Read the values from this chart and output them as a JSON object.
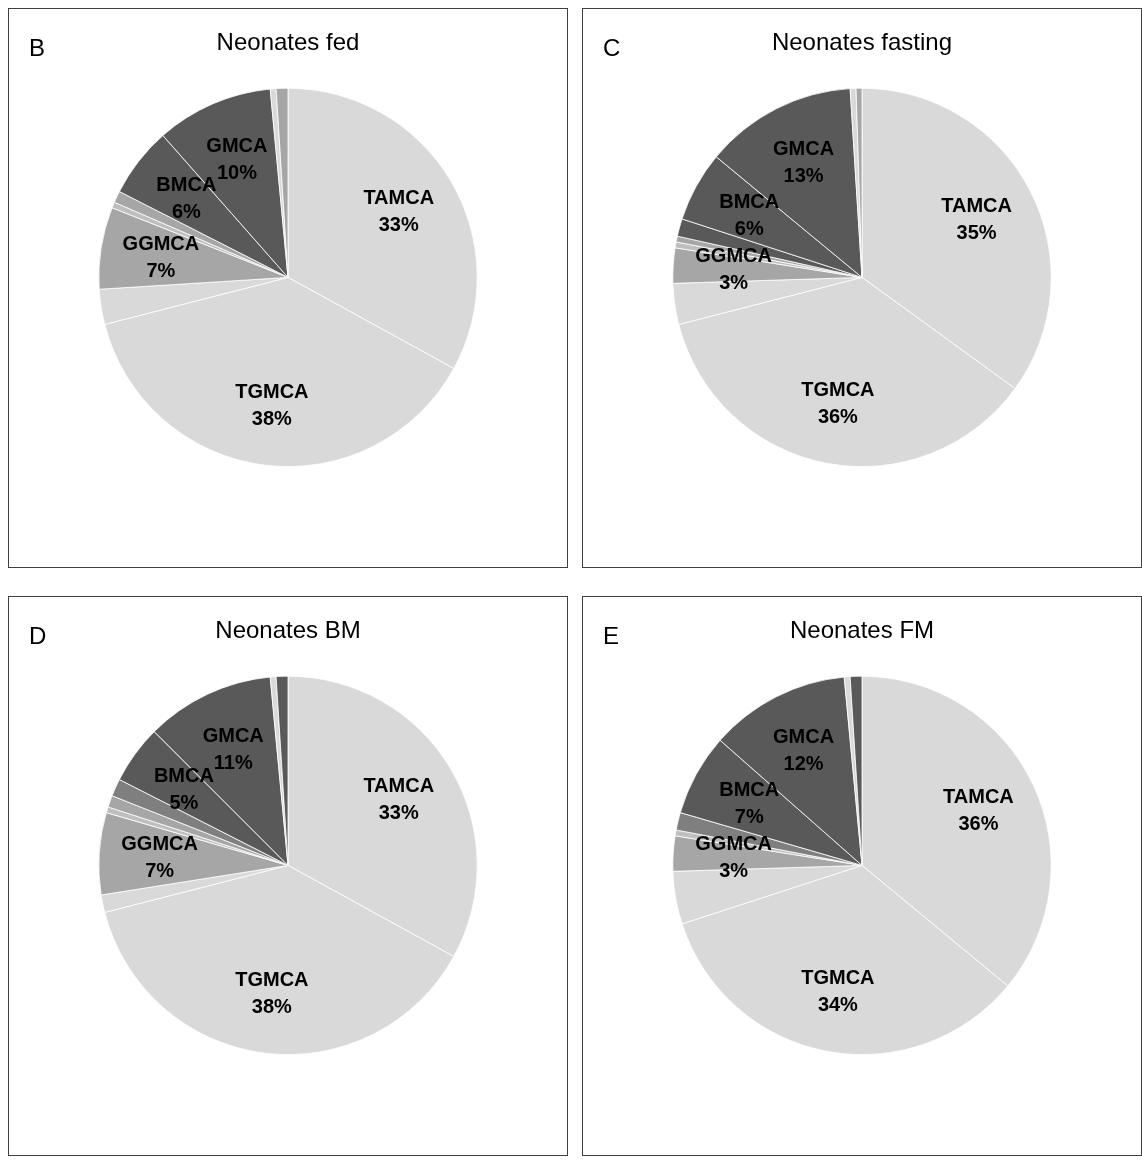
{
  "chart_data": [
    {
      "type": "pie",
      "title": "Neonates fed",
      "annotations": [
        "B"
      ],
      "legend": false,
      "categories": [
        "TAMCA",
        "TGMCA",
        null,
        "GGMCA",
        null,
        null,
        "BMCA",
        "GMCA",
        null,
        null
      ],
      "values": [
        33,
        38,
        3,
        7,
        0.5,
        1,
        6,
        10,
        0.5,
        1
      ],
      "value_labels": [
        "33%",
        "38%",
        null,
        "7%",
        null,
        null,
        "6%",
        "10%",
        null,
        null
      ],
      "colors": [
        "#d9d9d9",
        "#d9d9d9",
        "#d9d9d9",
        "#a6a6a6",
        "#bfbfbf",
        "#a6a6a6",
        "#595959",
        "#595959",
        "#d9d9d9",
        "#a6a6a6"
      ]
    },
    {
      "type": "pie",
      "title": "Neonates fasting",
      "annotations": [
        "C"
      ],
      "legend": false,
      "categories": [
        "TAMCA",
        "TGMCA",
        null,
        "GGMCA",
        null,
        null,
        null,
        "BMCA",
        "GMCA",
        null,
        null
      ],
      "values": [
        35,
        36,
        3.5,
        3,
        0.5,
        0.5,
        1.5,
        6,
        13,
        0.5,
        0.5
      ],
      "value_labels": [
        "35%",
        "36%",
        null,
        "3%",
        null,
        null,
        null,
        "6%",
        "13%",
        null,
        null
      ],
      "colors": [
        "#d9d9d9",
        "#d9d9d9",
        "#d9d9d9",
        "#a6a6a6",
        "#bfbfbf",
        "#a6a6a6",
        "#595959",
        "#595959",
        "#595959",
        "#d9d9d9",
        "#a6a6a6"
      ]
    },
    {
      "type": "pie",
      "title": "Neonates BM",
      "annotations": [
        "D"
      ],
      "legend": false,
      "categories": [
        "TAMCA",
        "TGMCA",
        null,
        "GGMCA",
        null,
        null,
        null,
        "BMCA",
        "GMCA",
        null,
        null
      ],
      "values": [
        33,
        38,
        1.5,
        7,
        0.5,
        1,
        1.5,
        5,
        11,
        0.5,
        1
      ],
      "value_labels": [
        "33%",
        "38%",
        null,
        "7%",
        null,
        null,
        null,
        "5%",
        "11%",
        null,
        null
      ],
      "colors": [
        "#d9d9d9",
        "#d9d9d9",
        "#d9d9d9",
        "#a6a6a6",
        "#bfbfbf",
        "#a6a6a6",
        "#7f7f7f",
        "#595959",
        "#595959",
        "#d9d9d9",
        "#595959"
      ]
    },
    {
      "type": "pie",
      "title": "Neonates FM",
      "annotations": [
        "E"
      ],
      "legend": false,
      "categories": [
        "TAMCA",
        "TGMCA",
        null,
        "GGMCA",
        null,
        null,
        "BMCA",
        "GMCA",
        null,
        null
      ],
      "values": [
        36,
        34,
        4.5,
        3,
        0.5,
        1.5,
        7,
        12,
        0.5,
        1
      ],
      "value_labels": [
        "36%",
        "34%",
        null,
        "3%",
        null,
        null,
        "7%",
        "12%",
        null,
        null
      ],
      "colors": [
        "#d9d9d9",
        "#d9d9d9",
        "#d9d9d9",
        "#a6a6a6",
        "#bfbfbf",
        "#7f7f7f",
        "#595959",
        "#595959",
        "#d9d9d9",
        "#595959"
      ]
    }
  ]
}
